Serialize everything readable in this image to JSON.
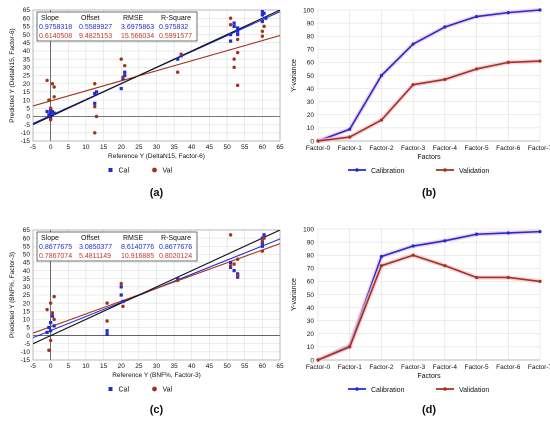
{
  "figure": {
    "panel_labels": [
      "(a)",
      "(b)",
      "(c)",
      "(d)"
    ]
  },
  "colors": {
    "cal": "#1f2bd4",
    "val": "#a3321f",
    "grid": "#d9d9d9",
    "axis": "#333333",
    "text": "#111111",
    "stat_cal": "#1f2bd4",
    "stat_val": "#c0392b",
    "halo": "#f2c2d2"
  },
  "chart_data": [
    {
      "panel": "(a)",
      "type": "scatter",
      "xlabel": "Reference Y (DeltaN15, Factor-6)",
      "ylabel": "Predicted Y (DeltaN15, Factor-6)",
      "xlim": [
        -5,
        65
      ],
      "ylim": [
        -15,
        65
      ],
      "x_ticks": [
        -5,
        0,
        5,
        10,
        15,
        20,
        25,
        30,
        35,
        40,
        45,
        50,
        55,
        60,
        65
      ],
      "y_ticks": [
        -15,
        -10,
        -5,
        0,
        5,
        10,
        15,
        20,
        25,
        30,
        35,
        40,
        45,
        50,
        55,
        60,
        65
      ],
      "legend": {
        "position": "bottom",
        "entries": [
          "Cal",
          "Val"
        ]
      },
      "stats": {
        "headers": [
          "Slope",
          "Offset",
          "RMSE",
          "R-Square"
        ],
        "rows": [
          {
            "series": "Cal",
            "values": [
              "0.9758318",
              "0.5589927",
              "3.6975863",
              "0.975832"
            ]
          },
          {
            "series": "Val",
            "values": [
              "0.6140508",
              "9.4825153",
              "15.566034",
              "0.5991577"
            ]
          }
        ]
      },
      "series": [
        {
          "name": "Cal",
          "marker": "square",
          "points": [
            [
              -1,
              3
            ],
            [
              -0.5,
              1
            ],
            [
              0,
              4
            ],
            [
              0,
              2
            ],
            [
              0,
              -1
            ],
            [
              0.5,
              3
            ],
            [
              1,
              2
            ],
            [
              12.5,
              8
            ],
            [
              12.5,
              14
            ],
            [
              13,
              15
            ],
            [
              20,
              17
            ],
            [
              20.5,
              23
            ],
            [
              21,
              25
            ],
            [
              21,
              27
            ],
            [
              36,
              35
            ],
            [
              37,
              37
            ],
            [
              51,
              46
            ],
            [
              51,
              50
            ],
            [
              52,
              55
            ],
            [
              52,
              57
            ],
            [
              53,
              52
            ],
            [
              53,
              54
            ],
            [
              53,
              50
            ],
            [
              60,
              58
            ],
            [
              60,
              62
            ],
            [
              60.5,
              63
            ],
            [
              61,
              60
            ],
            [
              60,
              64
            ]
          ]
        },
        {
          "name": "Val",
          "marker": "circle",
          "points": [
            [
              -1,
              22
            ],
            [
              -0.5,
              10
            ],
            [
              0,
              5
            ],
            [
              0,
              -2
            ],
            [
              0.5,
              20
            ],
            [
              1,
              18
            ],
            [
              1,
              12
            ],
            [
              12.5,
              20
            ],
            [
              12.5,
              6
            ],
            [
              13,
              0
            ],
            [
              12.5,
              -10
            ],
            [
              20,
              35
            ],
            [
              20.5,
              24
            ],
            [
              21,
              31
            ],
            [
              36,
              27
            ],
            [
              37,
              38
            ],
            [
              51,
              60
            ],
            [
              51,
              56
            ],
            [
              52,
              30
            ],
            [
              52,
              35
            ],
            [
              53,
              39
            ],
            [
              53,
              47
            ],
            [
              53,
              19
            ],
            [
              60,
              52
            ],
            [
              60,
              49
            ],
            [
              60.5,
              55
            ]
          ]
        }
      ],
      "fit_lines": [
        {
          "series": "Cal",
          "slope": 0.9758318,
          "offset": 0.5589927
        },
        {
          "series": "Val",
          "slope": 0.6140508,
          "offset": 9.4825153
        },
        {
          "series": "target",
          "slope": 1,
          "offset": 0
        }
      ]
    },
    {
      "panel": "(b)",
      "type": "line",
      "xlabel": "Factors",
      "ylabel": "Y-variance",
      "categories": [
        "Factor-0",
        "Factor-1",
        "Factor-2",
        "Factor-3",
        "Factor-4",
        "Factor-5",
        "Factor-6",
        "Factor-7"
      ],
      "ylim": [
        0,
        100
      ],
      "y_ticks": [
        0,
        10,
        20,
        30,
        40,
        50,
        60,
        70,
        80,
        90,
        100
      ],
      "legend": {
        "position": "bottom",
        "entries": [
          "Calibration",
          "Validation"
        ]
      },
      "series": [
        {
          "name": "Calibration",
          "values": [
            0,
            9,
            50,
            74,
            87,
            95,
            98,
            100
          ]
        },
        {
          "name": "Validation",
          "values": [
            0,
            3,
            16,
            43,
            47,
            55,
            60,
            61
          ]
        }
      ]
    },
    {
      "panel": "(c)",
      "type": "scatter",
      "xlabel": "Reference Y (BNF%, Factor-3)",
      "ylabel": "Predicted Y (BNF%, Factor-3)",
      "xlim": [
        -5,
        65
      ],
      "ylim": [
        -15,
        65
      ],
      "x_ticks": [
        -5,
        0,
        5,
        10,
        15,
        20,
        25,
        30,
        35,
        40,
        45,
        50,
        55,
        60,
        65
      ],
      "y_ticks": [
        -15,
        -10,
        -5,
        0,
        5,
        10,
        15,
        20,
        25,
        30,
        35,
        40,
        45,
        50,
        55,
        60,
        65
      ],
      "legend": {
        "position": "bottom",
        "entries": [
          "Cal",
          "Val"
        ]
      },
      "stats": {
        "headers": [
          "Slope",
          "Offset",
          "RMSE",
          "R-Square"
        ],
        "rows": [
          {
            "series": "Cal",
            "values": [
              "0.8677675",
              "3.0850377",
              "8.6140776",
              "0.8677676"
            ]
          },
          {
            "series": "Val",
            "values": [
              "0.7867074",
              "5.4811149",
              "10.916885",
              "0.8020124"
            ]
          }
        ]
      },
      "series": [
        {
          "name": "Cal",
          "marker": "square",
          "points": [
            [
              -1,
              2
            ],
            [
              -0.5,
              5
            ],
            [
              0,
              8
            ],
            [
              0,
              3
            ],
            [
              0.5,
              12
            ],
            [
              1,
              6
            ],
            [
              16,
              1
            ],
            [
              16,
              3
            ],
            [
              20,
              25
            ],
            [
              20,
              30
            ],
            [
              20.5,
              21
            ],
            [
              36,
              35
            ],
            [
              51,
              42
            ],
            [
              51,
              45
            ],
            [
              52,
              40
            ],
            [
              53,
              36
            ],
            [
              53,
              38
            ],
            [
              60,
              55
            ],
            [
              60,
              60
            ],
            [
              60.5,
              62
            ],
            [
              60,
              57
            ]
          ]
        },
        {
          "name": "Val",
          "marker": "circle",
          "points": [
            [
              -1,
              16
            ],
            [
              -0.5,
              -9
            ],
            [
              0,
              20
            ],
            [
              0,
              -3
            ],
            [
              0.5,
              14
            ],
            [
              1,
              24
            ],
            [
              1,
              10
            ],
            [
              16,
              20
            ],
            [
              16,
              9
            ],
            [
              20,
              32
            ],
            [
              20.5,
              18
            ],
            [
              36,
              34
            ],
            [
              51,
              62
            ],
            [
              51,
              43
            ],
            [
              52,
              44
            ],
            [
              53,
              37
            ],
            [
              53,
              47
            ],
            [
              60,
              52
            ],
            [
              60,
              58
            ],
            [
              60.5,
              60
            ]
          ]
        }
      ],
      "fit_lines": [
        {
          "series": "Cal",
          "slope": 0.8677675,
          "offset": 3.0850377
        },
        {
          "series": "Val",
          "slope": 0.7867074,
          "offset": 5.4811149
        },
        {
          "series": "target",
          "slope": 1,
          "offset": 0
        }
      ]
    },
    {
      "panel": "(d)",
      "type": "line",
      "xlabel": "Factors",
      "ylabel": "Y-variance",
      "categories": [
        "Factor-0",
        "Factor-1",
        "Factor-2",
        "Factor-3",
        "Factor-4",
        "Factor-5",
        "Factor-6",
        "Factor-7"
      ],
      "ylim": [
        0,
        100
      ],
      "y_ticks": [
        0,
        10,
        20,
        30,
        40,
        50,
        60,
        70,
        80,
        90,
        100
      ],
      "legend": {
        "position": "bottom",
        "entries": [
          "Calibration",
          "Validation"
        ]
      },
      "series": [
        {
          "name": "Calibration",
          "values": [
            0,
            11,
            79,
            87,
            91,
            96,
            97,
            98
          ]
        },
        {
          "name": "Validation",
          "values": [
            0,
            10,
            72,
            80,
            72,
            63,
            63,
            60
          ]
        }
      ]
    }
  ]
}
